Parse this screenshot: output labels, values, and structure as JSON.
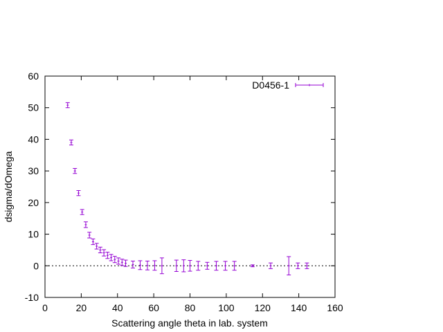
{
  "chart_data": {
    "type": "scatter",
    "title": "",
    "xlabel": "Scattering angle theta in lab. system",
    "ylabel": "dsigma/dOmega",
    "xlim": [
      0,
      160
    ],
    "ylim": [
      -10,
      60
    ],
    "xticks": [
      0,
      20,
      40,
      60,
      80,
      100,
      120,
      140,
      160
    ],
    "yticks": [
      -10,
      0,
      10,
      20,
      30,
      40,
      50,
      60
    ],
    "grid": false,
    "zero_line": true,
    "legend": "top-right",
    "series": [
      {
        "name": "D0456-1",
        "color": "#9400d3",
        "style": "errorbars",
        "points": [
          {
            "x": 12.5,
            "y": 50.8,
            "err": 0.8
          },
          {
            "x": 14.5,
            "y": 39.0,
            "err": 0.8
          },
          {
            "x": 16.5,
            "y": 30.0,
            "err": 0.8
          },
          {
            "x": 18.5,
            "y": 23.0,
            "err": 0.8
          },
          {
            "x": 20.5,
            "y": 17.0,
            "err": 0.8
          },
          {
            "x": 22.5,
            "y": 13.0,
            "err": 0.9
          },
          {
            "x": 24.5,
            "y": 9.7,
            "err": 0.9
          },
          {
            "x": 26.5,
            "y": 7.6,
            "err": 0.9
          },
          {
            "x": 28.5,
            "y": 6.2,
            "err": 0.9
          },
          {
            "x": 30.5,
            "y": 5.0,
            "err": 0.9
          },
          {
            "x": 32.5,
            "y": 4.1,
            "err": 1.0
          },
          {
            "x": 34.5,
            "y": 3.3,
            "err": 1.0
          },
          {
            "x": 36.5,
            "y": 2.6,
            "err": 1.0
          },
          {
            "x": 38.5,
            "y": 2.0,
            "err": 1.0
          },
          {
            "x": 40.5,
            "y": 1.5,
            "err": 1.0
          },
          {
            "x": 42.5,
            "y": 1.1,
            "err": 1.0
          },
          {
            "x": 44.5,
            "y": 0.8,
            "err": 1.0
          },
          {
            "x": 48.5,
            "y": 0.4,
            "err": 1.1
          },
          {
            "x": 52.5,
            "y": 0.2,
            "err": 1.4
          },
          {
            "x": 56.5,
            "y": 0.1,
            "err": 1.4
          },
          {
            "x": 60.5,
            "y": 0.1,
            "err": 1.5
          },
          {
            "x": 64.5,
            "y": 0.0,
            "err": 2.5
          },
          {
            "x": 72.5,
            "y": 0.0,
            "err": 1.8
          },
          {
            "x": 76.5,
            "y": 0.0,
            "err": 1.9
          },
          {
            "x": 80.0,
            "y": 0.0,
            "err": 1.7
          },
          {
            "x": 84.5,
            "y": 0.0,
            "err": 1.4
          },
          {
            "x": 89.5,
            "y": 0.0,
            "err": 1.1
          },
          {
            "x": 94.5,
            "y": 0.0,
            "err": 1.4
          },
          {
            "x": 99.5,
            "y": 0.0,
            "err": 1.4
          },
          {
            "x": 104.5,
            "y": 0.0,
            "err": 1.4
          },
          {
            "x": 114.5,
            "y": 0.0,
            "err": 0.3
          },
          {
            "x": 124.5,
            "y": 0.0,
            "err": 0.9
          },
          {
            "x": 134.5,
            "y": 0.0,
            "err": 2.9
          },
          {
            "x": 139.5,
            "y": 0.0,
            "err": 0.9
          },
          {
            "x": 144.5,
            "y": 0.0,
            "err": 0.9
          }
        ]
      }
    ]
  }
}
